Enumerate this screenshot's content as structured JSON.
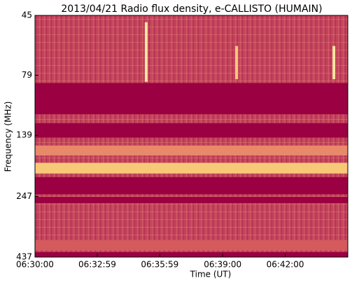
{
  "chart_data": {
    "type": "spectrogram",
    "title": "2013/04/21  Radio flux density, e-CALLISTO (HUMAIN)",
    "xlabel": "Time (UT)",
    "ylabel": "Frequency (MHz)",
    "xlim": [
      0,
      900
    ],
    "xticks": [
      {
        "value": 0,
        "label": "06:30:00"
      },
      {
        "value": 179,
        "label": "06:32:59"
      },
      {
        "value": 359,
        "label": "06:35:59"
      },
      {
        "value": 540,
        "label": "06:39:00"
      },
      {
        "value": 720,
        "label": "06:42:00"
      }
    ],
    "ylim": [
      45,
      437
    ],
    "yticks": [
      45,
      79,
      139,
      247,
      437
    ],
    "yscale": "log",
    "y_inverted": true,
    "background_color": "#c2435c",
    "bands": [
      {
        "ylow": 85,
        "yhigh": 114,
        "color": "#9b0042"
      },
      {
        "ylow": 124,
        "yhigh": 142,
        "color": "#9b0042"
      },
      {
        "ylow": 153,
        "yhigh": 168,
        "color": "#e8896a"
      },
      {
        "ylow": 180,
        "yhigh": 199,
        "color": "#f6c877"
      },
      {
        "ylow": 206,
        "yhigh": 242,
        "color": "#9b0042"
      },
      {
        "ylow": 248,
        "yhigh": 263,
        "color": "#9b0042"
      },
      {
        "ylow": 372,
        "yhigh": 409,
        "color": "#d45a5e"
      },
      {
        "ylow": 417,
        "yhigh": 437,
        "color": "#9b0042"
      }
    ],
    "bursts": [
      {
        "x": 320,
        "ylow": 48,
        "yhigh": 84,
        "color": "#fbe6a0"
      },
      {
        "x": 580,
        "ylow": 60,
        "yhigh": 82,
        "color": "#f6c877"
      },
      {
        "x": 860,
        "ylow": 60,
        "yhigh": 82,
        "color": "#fbe6a0"
      }
    ]
  }
}
